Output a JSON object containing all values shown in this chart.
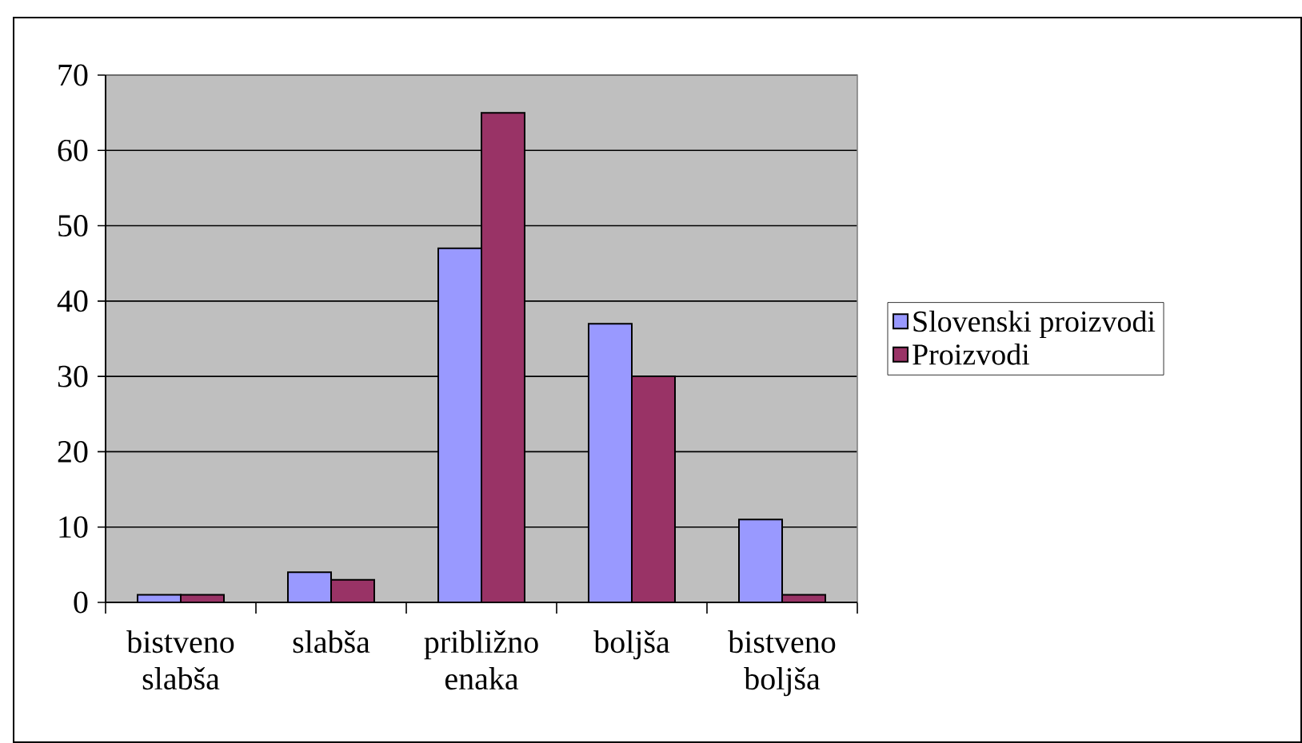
{
  "chart_data": {
    "type": "bar",
    "categories": [
      "bistveno slabša",
      "slabša",
      "približno enaka",
      "boljša",
      "bistveno boljša"
    ],
    "series": [
      {
        "name": "Slovenski proizvodi",
        "color": "#9999ff",
        "values": [
          1,
          4,
          47,
          37,
          11
        ]
      },
      {
        "name": "Proizvodi",
        "color": "#993366",
        "values": [
          1,
          3,
          65,
          30,
          1
        ]
      }
    ],
    "ylim": [
      0,
      70
    ],
    "yticks": [
      0,
      10,
      20,
      30,
      40,
      50,
      60,
      70
    ],
    "grid": "y",
    "legend": "right"
  }
}
